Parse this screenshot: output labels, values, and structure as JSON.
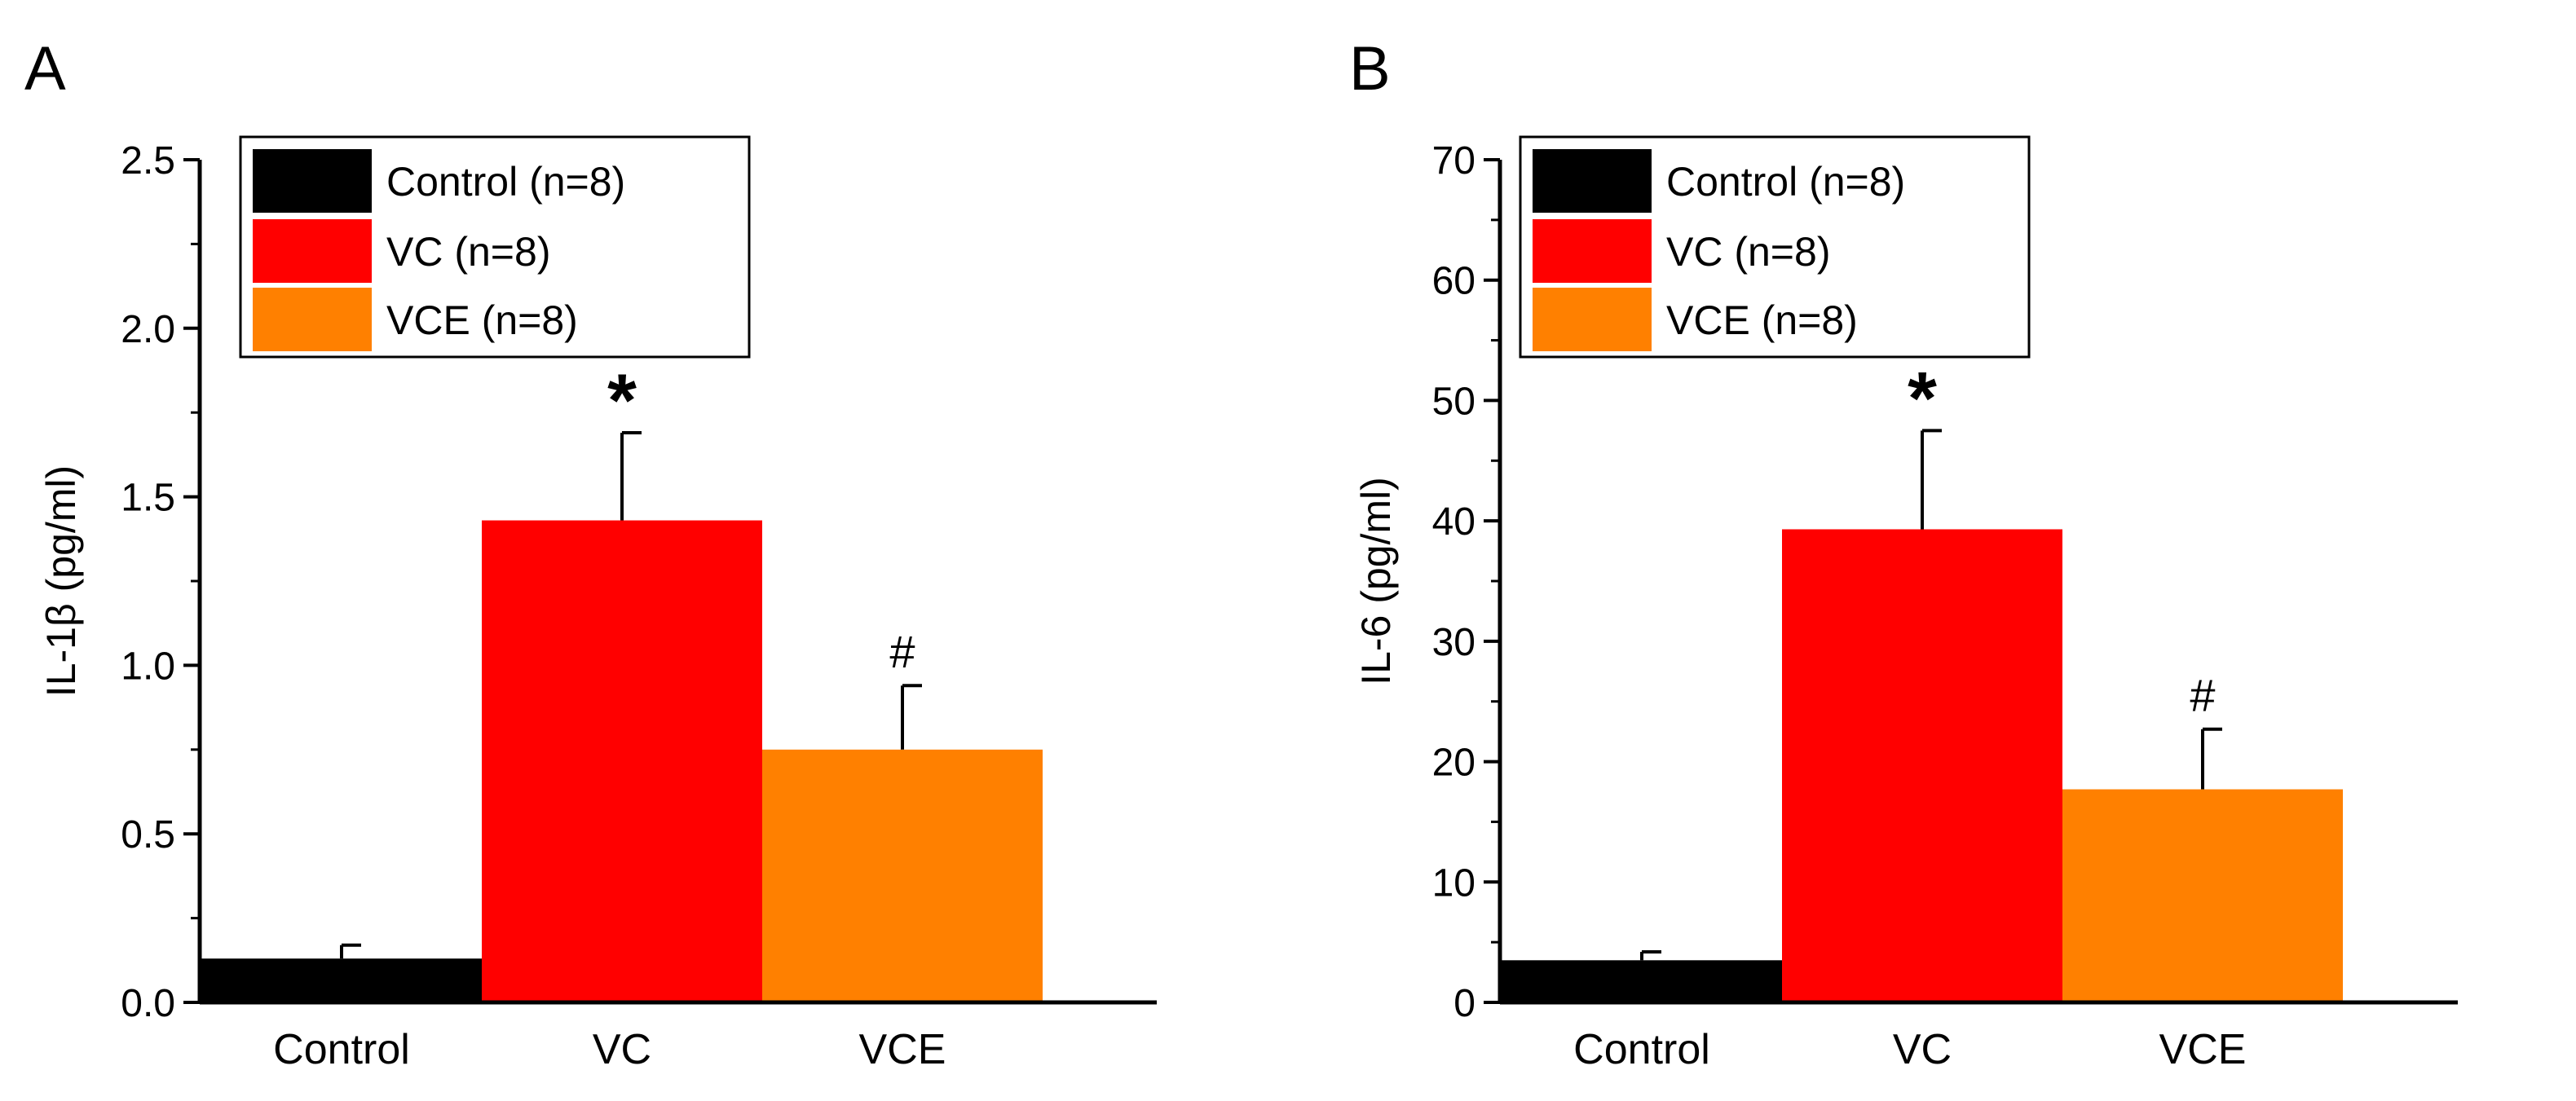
{
  "chart_data": [
    {
      "panel": "A",
      "type": "bar",
      "categories": [
        "Control",
        "VC",
        "VCE"
      ],
      "values": [
        0.13,
        1.43,
        0.75
      ],
      "errors": [
        0.04,
        0.26,
        0.19
      ],
      "annotations": [
        "",
        "*",
        "#"
      ],
      "colors": [
        "#000000",
        "#ff0000",
        "#ff8000"
      ],
      "legend": [
        "Control (n=8)",
        "VC (n=8)",
        "VCE (n=8)"
      ],
      "legend_position": "top-left",
      "ylabel": "IL-1β (pg/ml)",
      "xlabel": "",
      "ylim": [
        0,
        2.5
      ],
      "yticks": [
        0.0,
        0.5,
        1.0,
        1.5,
        2.0,
        2.5
      ],
      "ytick_labels": [
        "0.0",
        "0.5",
        "1.0",
        "1.5",
        "2.0",
        "2.5"
      ],
      "grid": false
    },
    {
      "panel": "B",
      "type": "bar",
      "categories": [
        "Control",
        "VC",
        "VCE"
      ],
      "values": [
        3.5,
        39.3,
        17.7
      ],
      "errors": [
        0.7,
        8.2,
        5.0
      ],
      "annotations": [
        "",
        "*",
        "#"
      ],
      "colors": [
        "#000000",
        "#ff0000",
        "#ff8000"
      ],
      "legend": [
        "Control (n=8)",
        "VC (n=8)",
        "VCE (n=8)"
      ],
      "legend_position": "top-left",
      "ylabel": "IL-6 (pg/ml)",
      "xlabel": "",
      "ylim": [
        0,
        70
      ],
      "yticks": [
        0,
        10,
        20,
        30,
        40,
        50,
        60,
        70
      ],
      "ytick_labels": [
        "0",
        "10",
        "20",
        "30",
        "40",
        "50",
        "60",
        "70"
      ],
      "grid": false
    }
  ]
}
